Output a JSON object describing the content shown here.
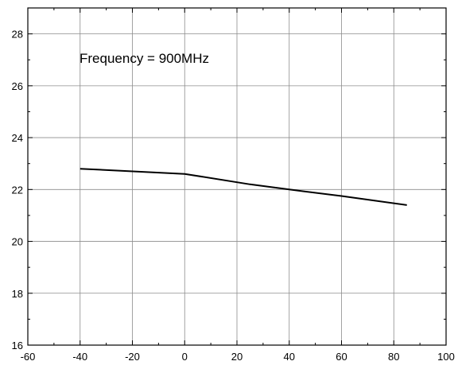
{
  "chart_data": {
    "type": "line",
    "title": "",
    "xlabel": "",
    "ylabel": "",
    "xlim": [
      -60,
      100
    ],
    "ylim": [
      16,
      29
    ],
    "x_ticks": [
      -60,
      -40,
      -20,
      0,
      20,
      40,
      60,
      80,
      100
    ],
    "y_ticks": [
      16,
      18,
      20,
      22,
      24,
      26,
      28
    ],
    "grid": true,
    "series": [
      {
        "x": [
          -40,
          0,
          25,
          40,
          60,
          85
        ],
        "y": [
          22.8,
          22.6,
          22.2,
          22.0,
          21.75,
          21.4
        ],
        "color": "#000000"
      }
    ],
    "annotation": "Frequency = 900MHz"
  }
}
